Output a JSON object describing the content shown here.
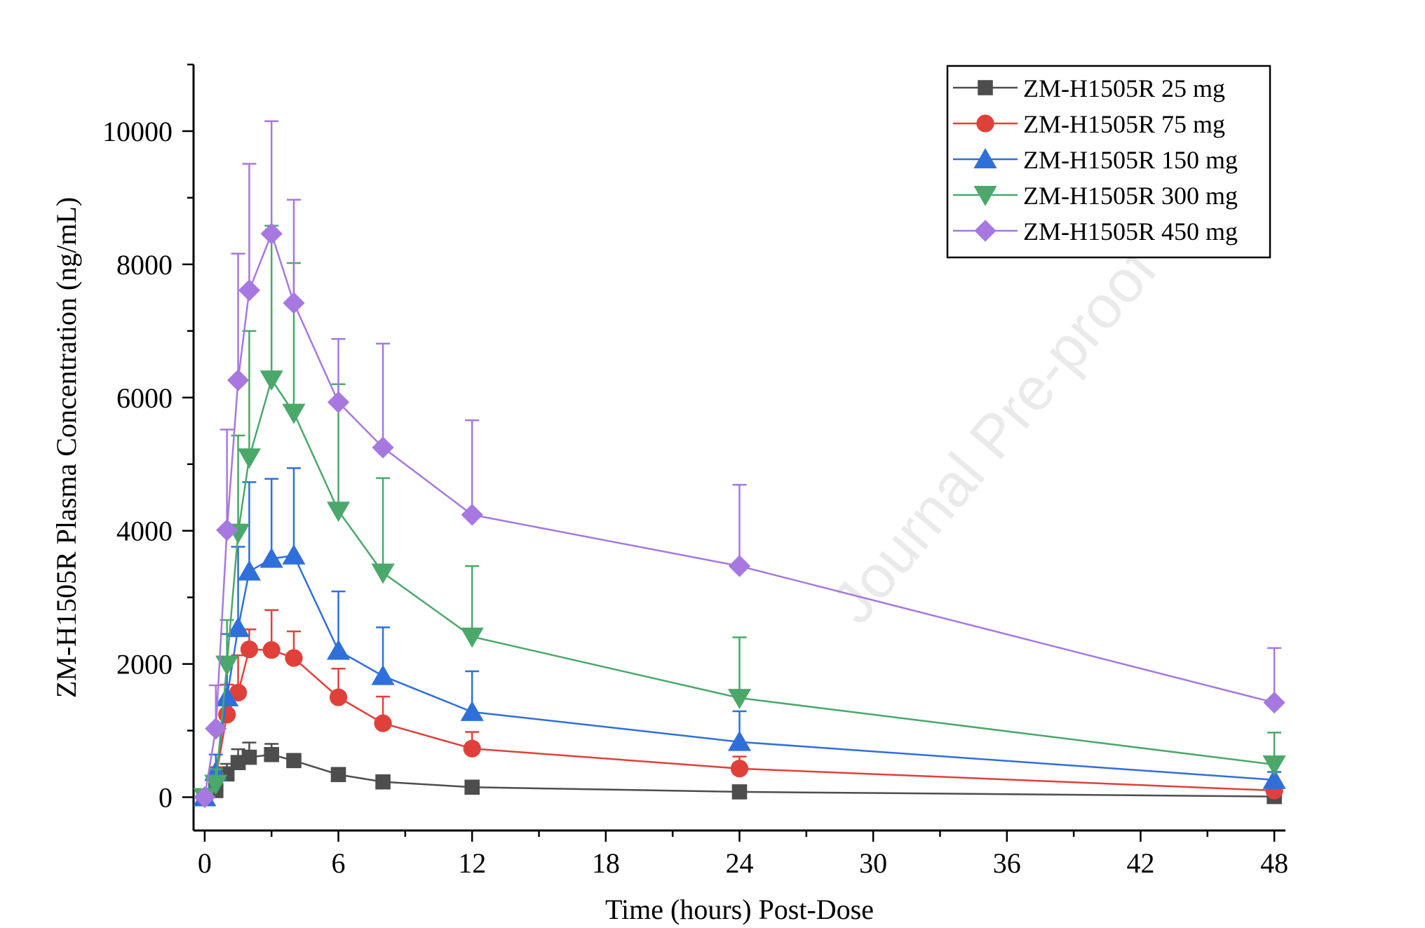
{
  "watermark": "Journal Pre-proof",
  "chart_data": {
    "type": "line",
    "xlabel": "Time (hours) Post-Dose",
    "ylabel": "ZM-H1505R Plasma Concentration (ng/mL)",
    "xlim": [
      -0.5,
      48.5
    ],
    "ylim": [
      -500,
      11000
    ],
    "xticks": [
      0,
      6,
      12,
      18,
      24,
      30,
      36,
      42,
      48
    ],
    "yticks": [
      0,
      2000,
      4000,
      6000,
      8000,
      10000
    ],
    "legend_position": "top-right",
    "x": [
      0,
      0.5,
      1,
      1.5,
      2,
      3,
      4,
      6,
      8,
      12,
      24,
      48
    ],
    "series": [
      {
        "name": "ZM-H1505R 25 mg",
        "color": "#4d4d4d",
        "marker": "square",
        "values": [
          0,
          100,
          350,
          520,
          600,
          640,
          550,
          340,
          230,
          150,
          80,
          10
        ],
        "error": [
          0,
          60,
          150,
          200,
          220,
          160,
          100,
          60,
          40,
          30,
          15,
          5
        ]
      },
      {
        "name": "ZM-H1505R 75 mg",
        "color": "#e0403a",
        "marker": "circle",
        "values": [
          0,
          300,
          1240,
          1570,
          2220,
          2210,
          2090,
          1500,
          1110,
          730,
          430,
          100
        ],
        "error": [
          0,
          150,
          450,
          560,
          300,
          600,
          400,
          430,
          400,
          250,
          180,
          40
        ]
      },
      {
        "name": "ZM-H1505R 150 mg",
        "color": "#2f6fd9",
        "marker": "triangle-up",
        "values": [
          0,
          380,
          1500,
          2540,
          3390,
          3580,
          3630,
          2200,
          1820,
          1280,
          830,
          260
        ],
        "error": [
          0,
          260,
          950,
          1220,
          1340,
          1200,
          1310,
          890,
          730,
          610,
          460,
          120
        ]
      },
      {
        "name": "ZM-H1505R 300 mg",
        "color": "#4aa86a",
        "marker": "triangle-down",
        "values": [
          0,
          200,
          1990,
          3970,
          5100,
          6270,
          5770,
          4300,
          3370,
          2410,
          1490,
          490
        ],
        "error": [
          0,
          220,
          670,
          1460,
          1900,
          2310,
          2250,
          1900,
          1420,
          1060,
          910,
          480
        ]
      },
      {
        "name": "ZM-H1505R 450 mg",
        "color": "#a678e0",
        "marker": "diamond",
        "values": [
          0,
          1030,
          4010,
          6260,
          7610,
          8460,
          7420,
          5930,
          5250,
          4240,
          3470,
          1420
        ],
        "error": [
          0,
          650,
          1510,
          1900,
          1900,
          1690,
          1550,
          950,
          1560,
          1420,
          1220,
          820
        ]
      }
    ]
  }
}
